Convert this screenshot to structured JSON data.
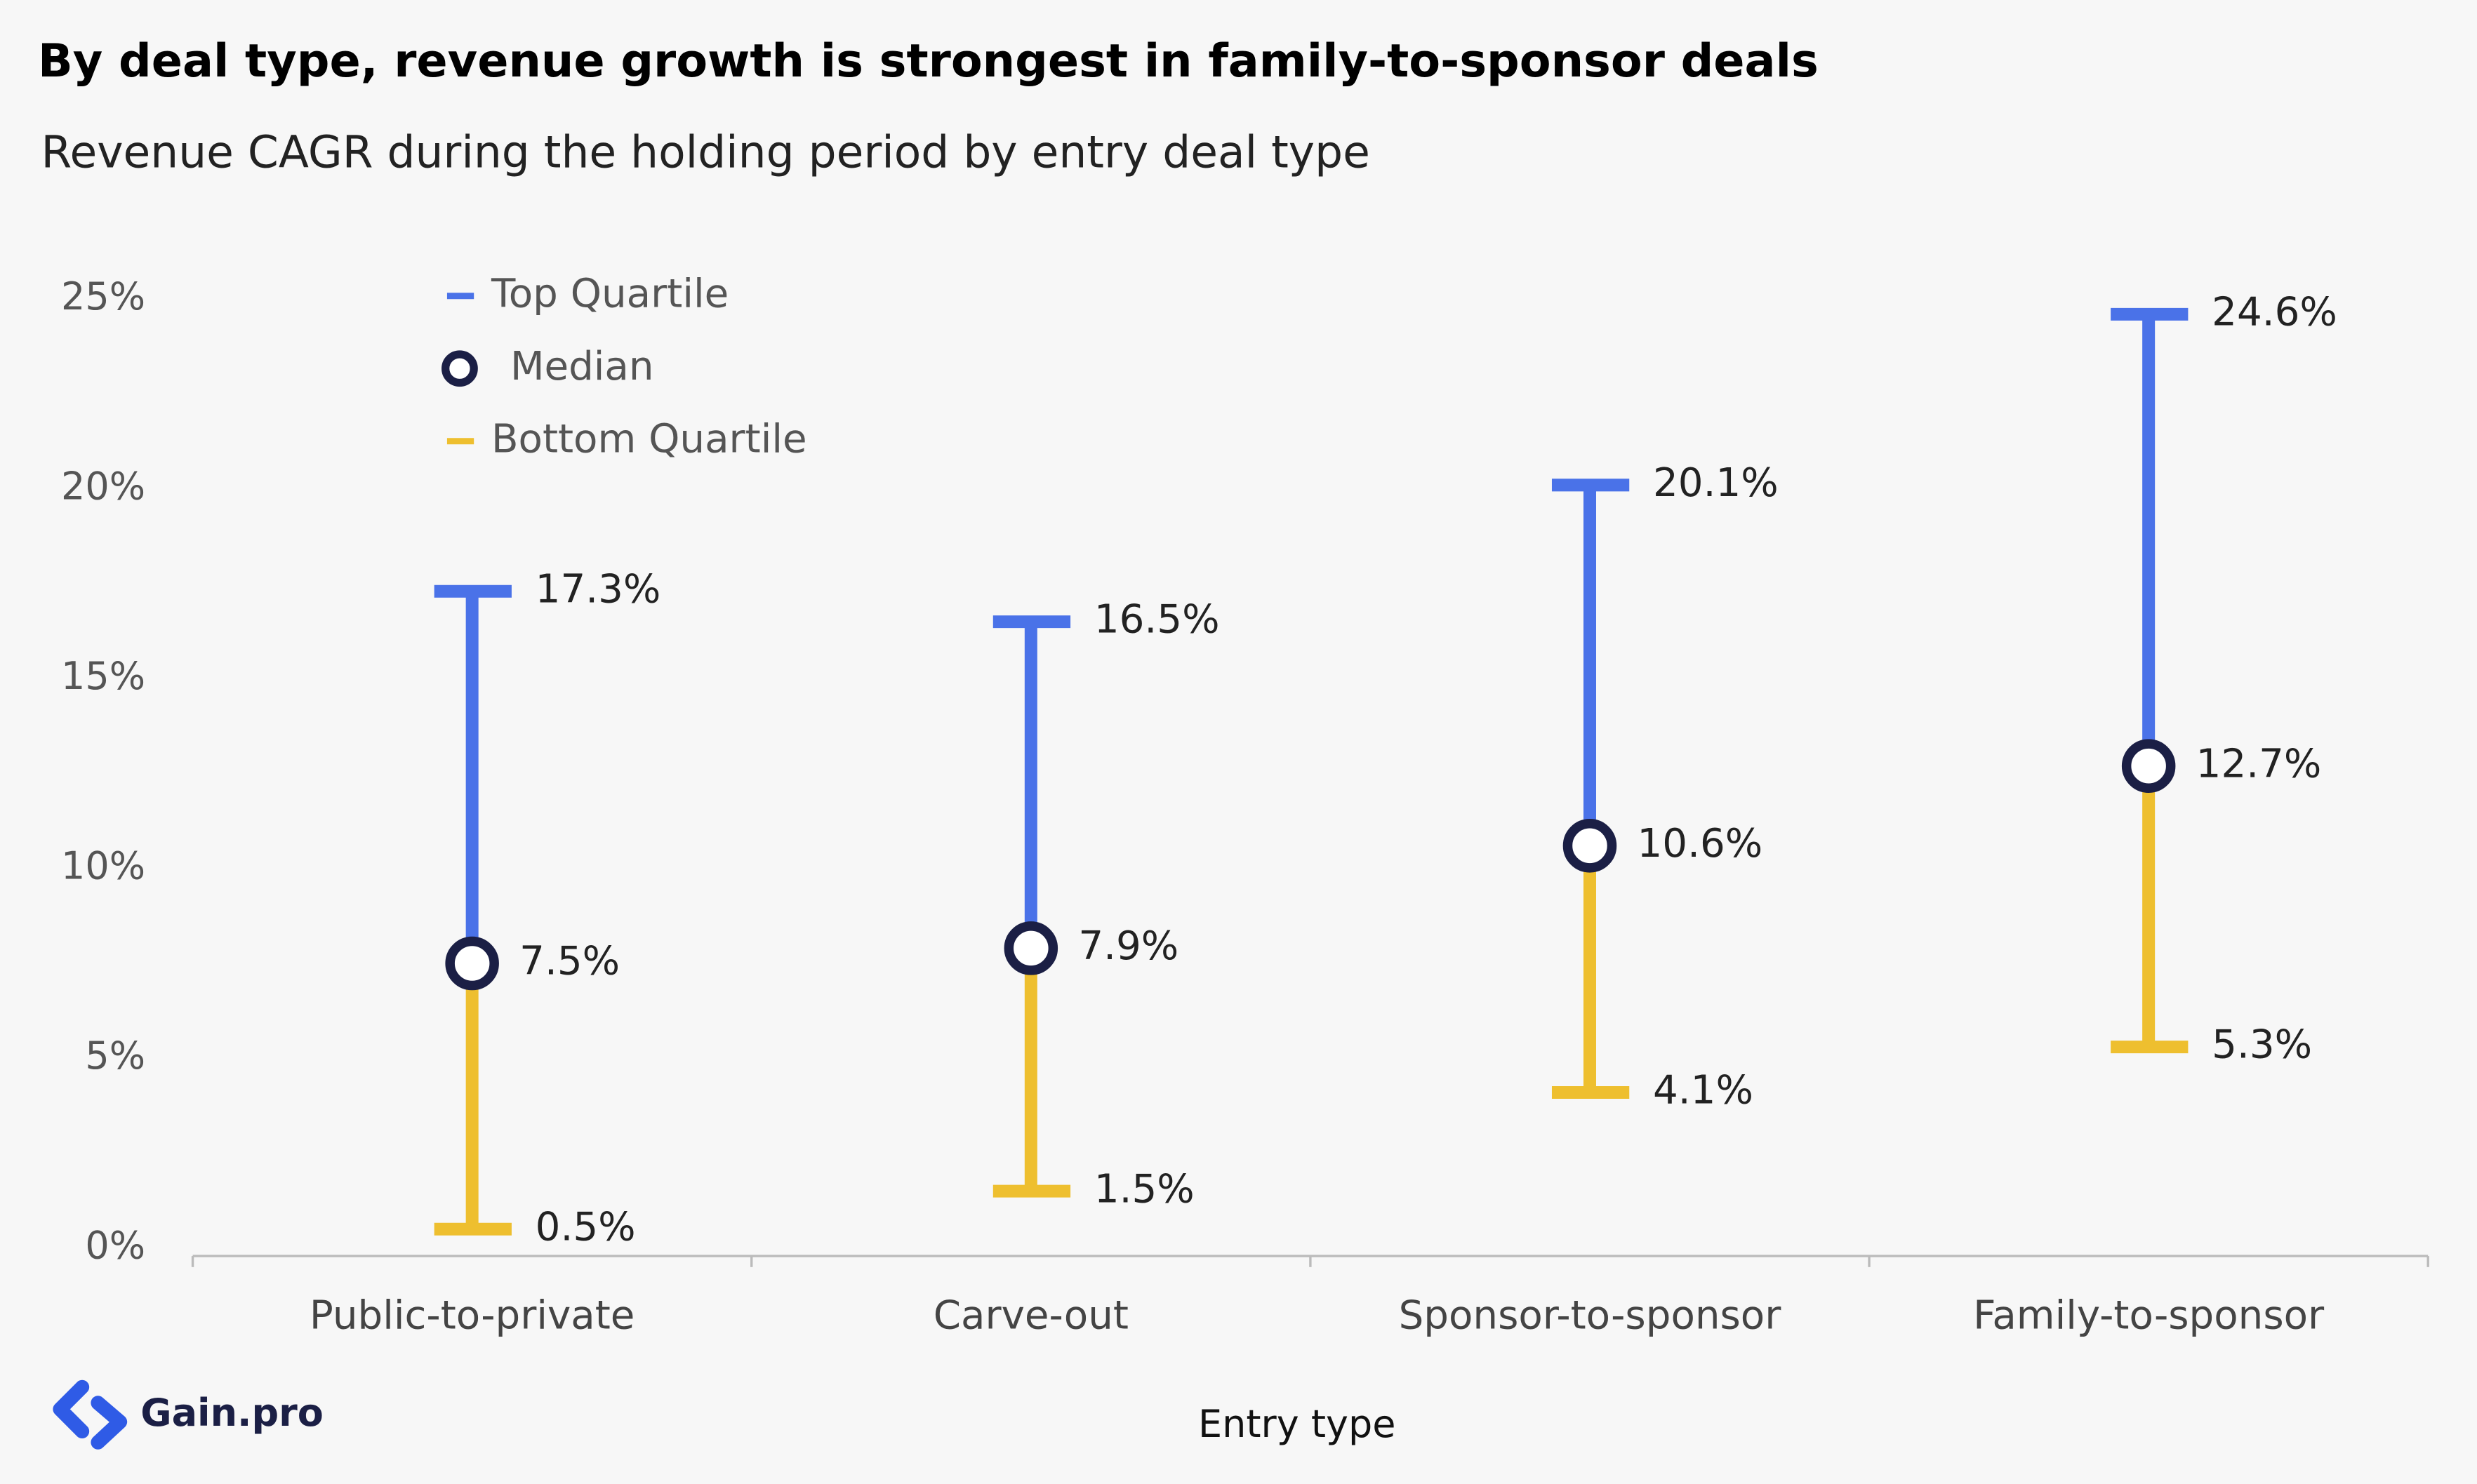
{
  "chart_data": {
    "type": "range",
    "title": "By deal type, revenue growth is strongest in family-to-sponsor deals",
    "subtitle": "Revenue CAGR during the holding period by entry deal type",
    "x_label": "Entry type",
    "logo": "Gain.pro",
    "categories": [
      "Public-to-private",
      "Carve-out",
      "Sponsor-to-sponsor",
      "Family-to-sponsor"
    ],
    "series": [
      {
        "name": "Top Quartile",
        "color": "#4a72e8",
        "values": [
          17.3,
          16.5,
          20.1,
          24.6
        ],
        "value_labels": [
          "17.3%",
          "16.5%",
          "20.1%",
          "24.6%"
        ]
      },
      {
        "name": "Median",
        "color": "#1b1f45",
        "values": [
          7.5,
          7.9,
          10.6,
          12.7
        ],
        "value_labels": [
          "7.5%",
          "7.9%",
          "10.6%",
          "12.7%"
        ]
      },
      {
        "name": "Bottom Quartile",
        "color": "#eebf2f",
        "values": [
          0.5,
          1.5,
          4.1,
          5.3
        ],
        "value_labels": [
          "0.5%",
          "1.5%",
          "4.1%",
          "5.3%"
        ]
      }
    ],
    "ylim": [
      0,
      25
    ],
    "yticks": [
      {
        "value": 0,
        "label": "0%"
      },
      {
        "value": 5,
        "label": "5%"
      },
      {
        "value": 10,
        "label": "10%"
      },
      {
        "value": 15,
        "label": "15%"
      },
      {
        "value": 20,
        "label": "20%"
      },
      {
        "value": 25,
        "label": "25%"
      }
    ],
    "legend": "upper-left"
  }
}
